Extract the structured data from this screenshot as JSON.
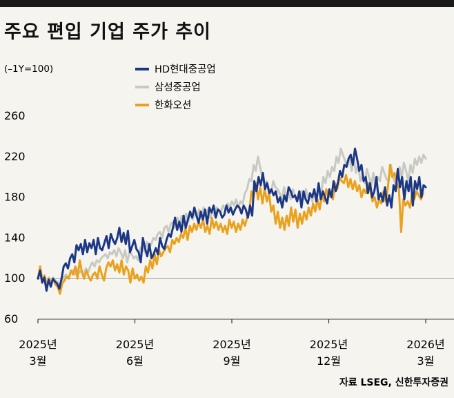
{
  "title": "주요 편입 기업 주가 추이",
  "source": "자료 LSEG, 신한투자증권",
  "colors": {
    "background": "#f5f4ef",
    "series_1": "#1c3784",
    "series_2": "#c9c9c4",
    "series_3": "#eaa11d",
    "baseline": "#999999",
    "text": "#111111"
  },
  "chart_data": {
    "type": "line",
    "ylabel": "(–1Y=100)",
    "ylim": [
      60,
      260
    ],
    "yticks": [
      60,
      100,
      140,
      180,
      220,
      260
    ],
    "xlim": [
      0,
      12
    ],
    "xticks": [
      {
        "pos": 0,
        "line1": "2025년",
        "line2": "3월"
      },
      {
        "pos": 3,
        "line1": "2025년",
        "line2": "6월"
      },
      {
        "pos": 6,
        "line1": "2025년",
        "line2": "9월"
      },
      {
        "pos": 9,
        "line1": "2025년",
        "line2": "12월"
      },
      {
        "pos": 12,
        "line1": "2026년",
        "line2": "3월"
      }
    ],
    "baseline": 100,
    "legend": "top-center",
    "series": [
      {
        "name": "HD현대중공업",
        "x_end": 12.0,
        "values": [
          100,
          108,
          96,
          101,
          88,
          99,
          92,
          100,
          97,
          95,
          90,
          100,
          112,
          115,
          110,
          120,
          124,
          116,
          133,
          128,
          134,
          124,
          138,
          126,
          135,
          130,
          138,
          124,
          140,
          130,
          128,
          135,
          142,
          130,
          144,
          138,
          134,
          140,
          150,
          136,
          145,
          134,
          147,
          126,
          132,
          138,
          129,
          126,
          116,
          140,
          130,
          122,
          134,
          120,
          124,
          130,
          124,
          140,
          132,
          129,
          138,
          144,
          141,
          150,
          160,
          148,
          156,
          146,
          162,
          150,
          158,
          166,
          160,
          170,
          162,
          155,
          166,
          158,
          168,
          154,
          170,
          165,
          172,
          160,
          168,
          166,
          160,
          163,
          172,
          165,
          170,
          163,
          168,
          172,
          170,
          164,
          172,
          168,
          160,
          172,
          162,
          196,
          186,
          200,
          192,
          204,
          188,
          194,
          184,
          188,
          182,
          186,
          175,
          180,
          170,
          182,
          176,
          190,
          186,
          180,
          182,
          176,
          186,
          170,
          186,
          178,
          174,
          184,
          180,
          188,
          176,
          194,
          178,
          186,
          180,
          174,
          188,
          180,
          196,
          186,
          194,
          206,
          200,
          212,
          210,
          218,
          222,
          212,
          228,
          218,
          206,
          212,
          196,
          200,
          184,
          194,
          180,
          186,
          200,
          178,
          184,
          176,
          190,
          172,
          182,
          170,
          192,
          186,
          208,
          190,
          200,
          178,
          196,
          186,
          200,
          172,
          196,
          188,
          200,
          180,
          192,
          190
        ]
      },
      {
        "name": "삼성중공업",
        "x_end": 12.0,
        "values": [
          100,
          107,
          98,
          103,
          94,
          101,
          96,
          101,
          98,
          97,
          94,
          98,
          102,
          104,
          100,
          106,
          108,
          104,
          110,
          106,
          108,
          104,
          110,
          106,
          112,
          116,
          112,
          118,
          116,
          120,
          122,
          124,
          120,
          126,
          124,
          128,
          122,
          130,
          126,
          120,
          128,
          116,
          126,
          124,
          120,
          122,
          118,
          130,
          132,
          126,
          136,
          130,
          134,
          140,
          138,
          144,
          146,
          140,
          150,
          152,
          146,
          154,
          156,
          150,
          160,
          154,
          162,
          158,
          164,
          156,
          166,
          158,
          166,
          160,
          168,
          162,
          170,
          164,
          168,
          160,
          166,
          162,
          170,
          168,
          166,
          172,
          168,
          174,
          170,
          176,
          172,
          178,
          170,
          176,
          174,
          184,
          188,
          198,
          196,
          212,
          206,
          220,
          210,
          200,
          192,
          196,
          188,
          184,
          196,
          190,
          188,
          184,
          178,
          190,
          180,
          186,
          178,
          188,
          182,
          176,
          180,
          186,
          178,
          188,
          180,
          184,
          176,
          186,
          178,
          192,
          182,
          200,
          194,
          206,
          200,
          210,
          206,
          220,
          214,
          228,
          222,
          216,
          210,
          220,
          206,
          218,
          204,
          212,
          196,
          200,
          194,
          208,
          200,
          192,
          204,
          188,
          200,
          196,
          210,
          204,
          198,
          196,
          212,
          200,
          194,
          206,
          210,
          200,
          214,
          206,
          196,
          212,
          204,
          218,
          212,
          220,
          214,
          222,
          218
        ]
      },
      {
        "name": "한화오션",
        "x_end": 11.92,
        "values": [
          100,
          112,
          98,
          103,
          92,
          100,
          96,
          99,
          94,
          92,
          85,
          95,
          98,
          102,
          100,
          108,
          104,
          112,
          100,
          118,
          106,
          100,
          108,
          102,
          98,
          104,
          106,
          100,
          112,
          104,
          98,
          110,
          116,
          112,
          118,
          108,
          114,
          106,
          118,
          104,
          112,
          108,
          96,
          110,
          100,
          104,
          98,
          102,
          96,
          112,
          106,
          118,
          110,
          124,
          114,
          128,
          122,
          126,
          130,
          132,
          126,
          138,
          134,
          140,
          136,
          144,
          140,
          150,
          138,
          152,
          146,
          154,
          148,
          156,
          150,
          158,
          146,
          152,
          144,
          160,
          150,
          156,
          148,
          154,
          146,
          152,
          144,
          158,
          150,
          156,
          146,
          154,
          148,
          158,
          152,
          160,
          164,
          186,
          180,
          194,
          178,
          190,
          174,
          188,
          176,
          184,
          166,
          172,
          154,
          166,
          150,
          160,
          148,
          162,
          152,
          170,
          156,
          168,
          150,
          164,
          154,
          166,
          158,
          170,
          162,
          174,
          166,
          178,
          168,
          182,
          176,
          188,
          180,
          184,
          178,
          194,
          188,
          200,
          196,
          194,
          202,
          190,
          198,
          188,
          196,
          186,
          192,
          180,
          188,
          184,
          194,
          186,
          176,
          180,
          170,
          178,
          174,
          186,
          176,
          190,
          212,
          200,
          204,
          194,
          188,
          146,
          178,
          172,
          176,
          170,
          184,
          178,
          186,
          182,
          178,
          184
        ]
      }
    ]
  }
}
